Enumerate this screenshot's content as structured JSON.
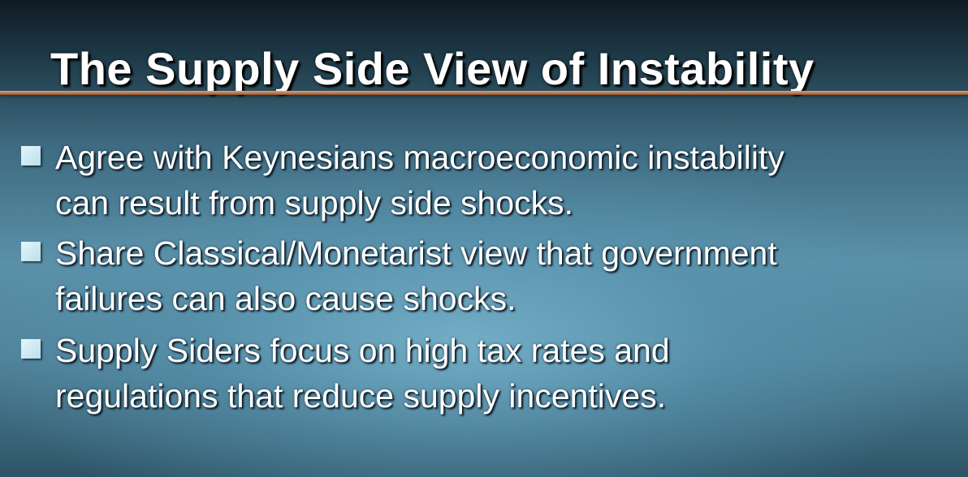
{
  "slide": {
    "title": "The Supply Side View of Instability",
    "bullets": [
      {
        "lines": [
          "Agree with Keynesians macroeconomic instability",
          "can result from supply side shocks."
        ]
      },
      {
        "lines": [
          "Share Classical/Monetarist view that government",
          "failures can also cause shocks."
        ]
      },
      {
        "lines": [
          "Supply Siders focus on high tax rates and",
          "regulations that reduce supply incentives."
        ]
      }
    ]
  },
  "colors": {
    "title_text": "#ffffff",
    "rule": "#b9754c",
    "bullet_marker": "#cdeaf3",
    "body_text": "#ffffff",
    "background_center": "#78b4cd",
    "background_top": "#0f1a22"
  }
}
